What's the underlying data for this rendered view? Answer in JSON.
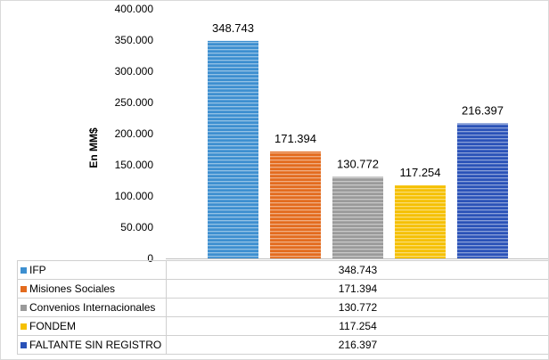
{
  "chart_data": {
    "type": "bar",
    "categories": [
      "IFP",
      "Misiones Sociales",
      "Convenios Internacionales",
      "FONDEM",
      "FALTANTE SIN REGISTRO"
    ],
    "values": [
      348743,
      171394,
      130772,
      117254,
      216397
    ],
    "value_labels": [
      "348.743",
      "171.394",
      "130.772",
      "117.254",
      "216.397"
    ],
    "colors": [
      "#3d8fd0",
      "#e36b1e",
      "#9a9a9a",
      "#f5c000",
      "#2a52b8"
    ],
    "title": "",
    "xlabel": "",
    "ylabel": "En MM$",
    "ylim": [
      0,
      400000
    ],
    "yticks": [
      0,
      50000,
      100000,
      150000,
      200000,
      250000,
      300000,
      350000,
      400000
    ],
    "ytick_labels": [
      "0",
      "50.000",
      "100.000",
      "150.000",
      "200.000",
      "250.000",
      "300.000",
      "350.000",
      "400.000"
    ],
    "grid": false,
    "legend": "data-table-bottom"
  }
}
